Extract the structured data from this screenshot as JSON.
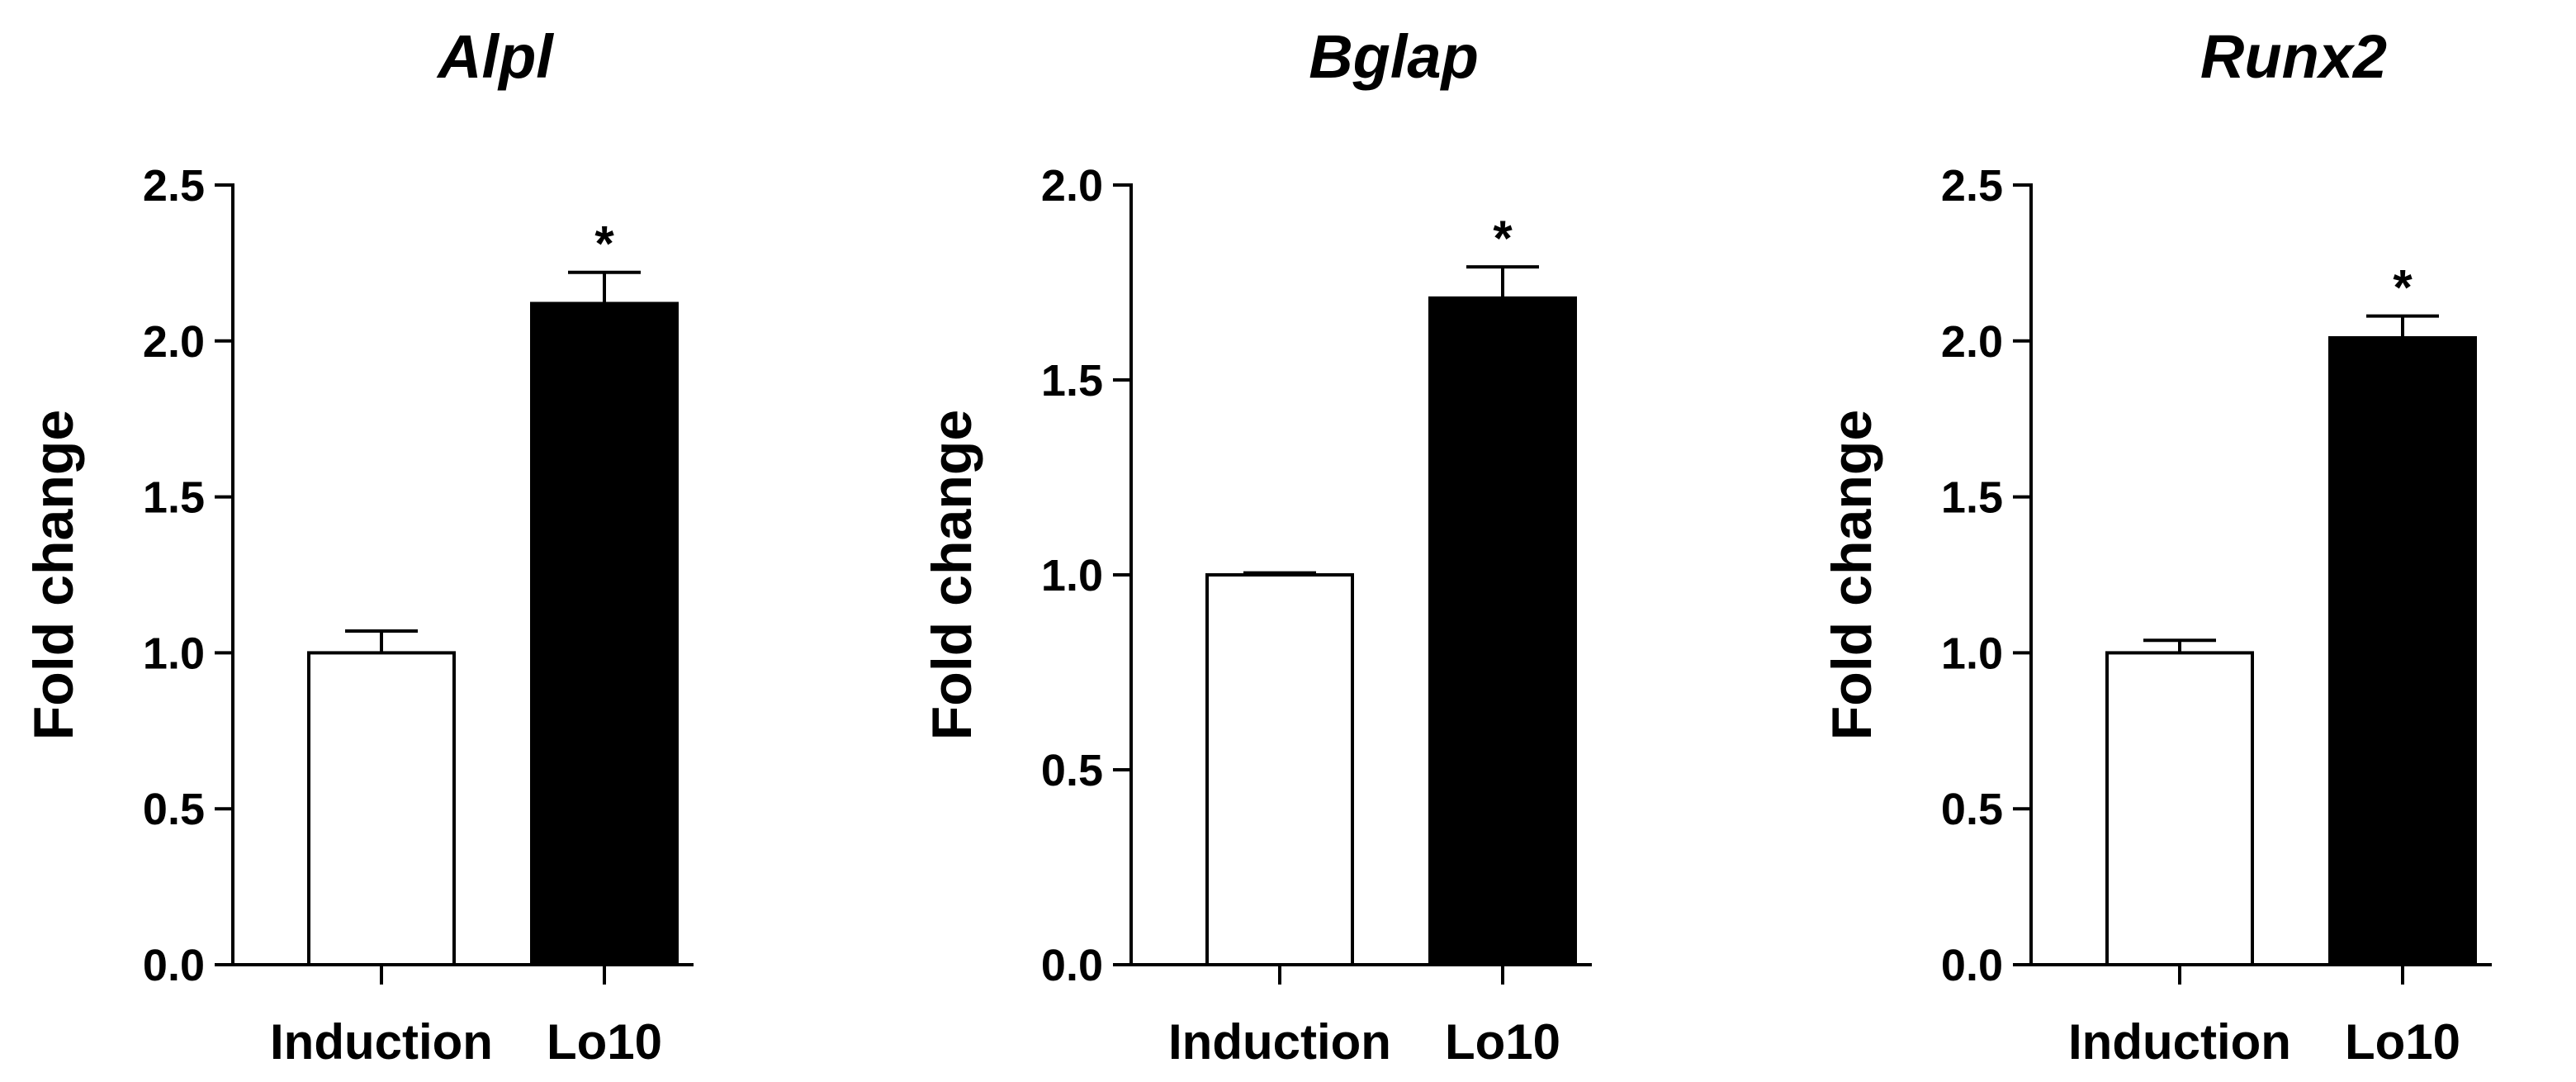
{
  "chart_data": [
    {
      "type": "bar",
      "title": "Alpl",
      "xlabel": "",
      "ylabel": "Fold change",
      "ylim": [
        0,
        2.5
      ],
      "yticks": [
        "0.0",
        "0.5",
        "1.0",
        "1.5",
        "2.0",
        "2.5"
      ],
      "categories": [
        "Induction",
        "Lo10"
      ],
      "values": [
        1.0,
        2.12
      ],
      "errors": [
        0.07,
        0.1
      ],
      "significance": [
        "",
        "*"
      ],
      "bar_colors": [
        "#ffffff",
        "#000000"
      ],
      "grid": false,
      "legend": "none"
    },
    {
      "type": "bar",
      "title": "Bglap",
      "xlabel": "",
      "ylabel": "Fold change",
      "ylim": [
        0,
        2.0
      ],
      "yticks": [
        "0.0",
        "0.5",
        "1.0",
        "1.5",
        "2.0"
      ],
      "categories": [
        "Induction",
        "Lo10"
      ],
      "values": [
        1.0,
        1.71
      ],
      "errors": [
        0.005,
        0.08
      ],
      "significance": [
        "",
        "*"
      ],
      "bar_colors": [
        "#ffffff",
        "#000000"
      ],
      "grid": false,
      "legend": "none"
    },
    {
      "type": "bar",
      "title": "Runx2",
      "xlabel": "",
      "ylabel": "Fold change",
      "ylim": [
        0,
        2.5
      ],
      "yticks": [
        "0.0",
        "0.5",
        "1.0",
        "1.5",
        "2.0",
        "2.5"
      ],
      "categories": [
        "Induction",
        "Lo10"
      ],
      "values": [
        1.0,
        2.01
      ],
      "errors": [
        0.04,
        0.07
      ],
      "significance": [
        "",
        "*"
      ],
      "bar_colors": [
        "#ffffff",
        "#000000"
      ],
      "grid": false,
      "legend": "none"
    }
  ]
}
